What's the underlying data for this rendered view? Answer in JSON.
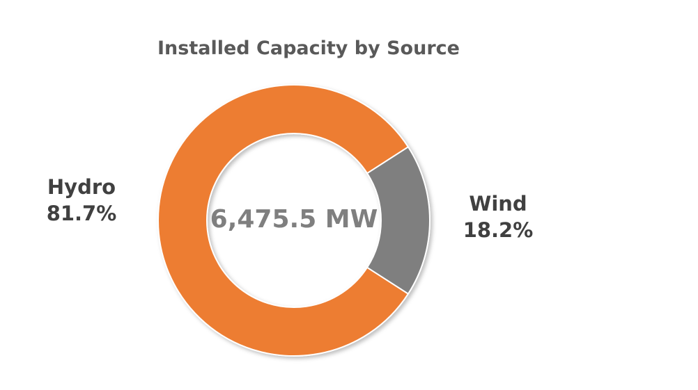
{
  "chart_data": {
    "type": "pie",
    "variant": "donut",
    "title": "Installed Capacity by Source",
    "center_label": "6,475.5 MW",
    "categories": [
      "Hydro",
      "Wind"
    ],
    "values": [
      81.7,
      18.2
    ],
    "data_labels": [
      "81.7%",
      "18.2%"
    ],
    "colors": [
      "#ed7d31",
      "#7f7f7f"
    ],
    "legend": "none"
  }
}
